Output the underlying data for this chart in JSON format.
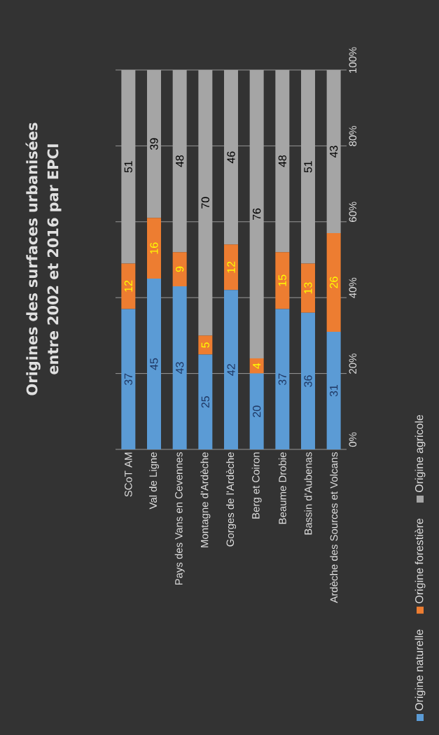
{
  "chart_data": {
    "type": "bar",
    "title": "Origines des surfaces urbanisées entre 2002 et 2016 par EPCI",
    "stacked": true,
    "categories": [
      "SCoT AM",
      "Val de Ligne",
      "Pays des Vans en Cevennes",
      "Montagne d'Ardèche",
      "Gorges de l'Ardèche",
      "Berg et Coiron",
      "Beaume Drobie",
      "Bassin d'Aubenas",
      "Ardèche des Sources et Volcans"
    ],
    "series": [
      {
        "name": "Origine naturelle",
        "color": "#5b9bd5",
        "values": [
          37,
          45,
          43,
          25,
          42,
          20,
          37,
          36,
          31
        ]
      },
      {
        "name": "Origine forestière",
        "color": "#ed7d31",
        "values": [
          12,
          16,
          9,
          5,
          12,
          4,
          15,
          13,
          26
        ]
      },
      {
        "name": "Origine agricole",
        "color": "#a5a5a5",
        "values": [
          51,
          39,
          48,
          70,
          46,
          76,
          48,
          51,
          43
        ]
      }
    ],
    "ylim": [
      0,
      100
    ],
    "yticks": [
      {
        "value": 0,
        "label": "0%"
      },
      {
        "value": 20,
        "label": "20%"
      },
      {
        "value": 40,
        "label": "40%"
      },
      {
        "value": 60,
        "label": "60%"
      },
      {
        "value": 80,
        "label": "80%"
      },
      {
        "value": 100,
        "label": "100%"
      }
    ],
    "grid": "y",
    "legend": "right",
    "data_labels": true
  }
}
